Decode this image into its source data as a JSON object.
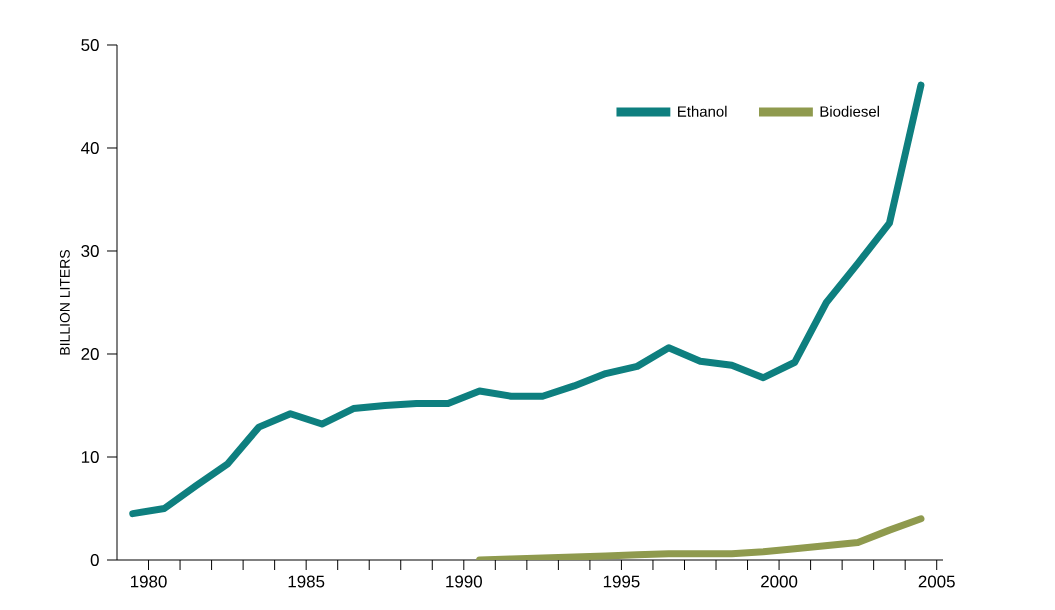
{
  "chart_data": {
    "type": "line",
    "ylabel": "BILLION LITERS",
    "xlim": [
      1979,
      2005.2
    ],
    "ylim": [
      0,
      50
    ],
    "xticks": [
      1980,
      {
        "value": 1981,
        "label": null
      },
      {
        "value": 1982,
        "label": null
      },
      {
        "value": 1983,
        "label": null
      },
      {
        "value": 1984,
        "label": null
      },
      1985,
      {
        "value": 1986,
        "label": null
      },
      {
        "value": 1987,
        "label": null
      },
      {
        "value": 1988,
        "label": null
      },
      {
        "value": 1989,
        "label": null
      },
      1990,
      {
        "value": 1991,
        "label": null
      },
      {
        "value": 1992,
        "label": null
      },
      {
        "value": 1993,
        "label": null
      },
      {
        "value": 1994,
        "label": null
      },
      1995,
      {
        "value": 1996,
        "label": null
      },
      {
        "value": 1997,
        "label": null
      },
      {
        "value": 1998,
        "label": null
      },
      {
        "value": 1999,
        "label": null
      },
      2000,
      {
        "value": 2001,
        "label": null
      },
      {
        "value": 2002,
        "label": null
      },
      {
        "value": 2003,
        "label": null
      },
      {
        "value": 2004,
        "label": null
      },
      2005
    ],
    "yticks": [
      0,
      10,
      20,
      30,
      40,
      50
    ],
    "legend": "top right",
    "grid": false,
    "series": [
      {
        "name": "Ethanol",
        "color": "#0e7f7f",
        "x": [
          1979.5,
          1980.5,
          1981.5,
          1982.5,
          1983.5,
          1984.5,
          1985.5,
          1986.5,
          1987.5,
          1988.5,
          1989.5,
          1990.5,
          1991.5,
          1992.5,
          1993.5,
          1994.5,
          1995.5,
          1996.5,
          1997.5,
          1998.5,
          1999.5,
          2000.5,
          2001.5,
          2002.5,
          2003.5,
          2004.5
        ],
        "values": [
          4.5,
          5.0,
          7.2,
          9.3,
          12.9,
          14.2,
          13.2,
          14.7,
          15.0,
          15.2,
          15.2,
          16.4,
          15.9,
          15.9,
          16.9,
          18.1,
          18.8,
          20.6,
          19.3,
          18.9,
          17.7,
          19.2,
          25.0,
          28.8,
          32.7,
          46.1
        ]
      },
      {
        "name": "Biodiesel",
        "color": "#8f9a4e",
        "x": [
          1990.5,
          1991.5,
          1992.5,
          1993.5,
          1994.5,
          1995.5,
          1996.5,
          1997.5,
          1998.5,
          1999.5,
          2000.5,
          2001.5,
          2002.5,
          2003.5,
          2004.5
        ],
        "values": [
          0,
          0.1,
          0.2,
          0.3,
          0.4,
          0.5,
          0.6,
          0.6,
          0.6,
          0.8,
          1.1,
          1.4,
          1.7,
          2.9,
          4.0
        ]
      }
    ]
  }
}
